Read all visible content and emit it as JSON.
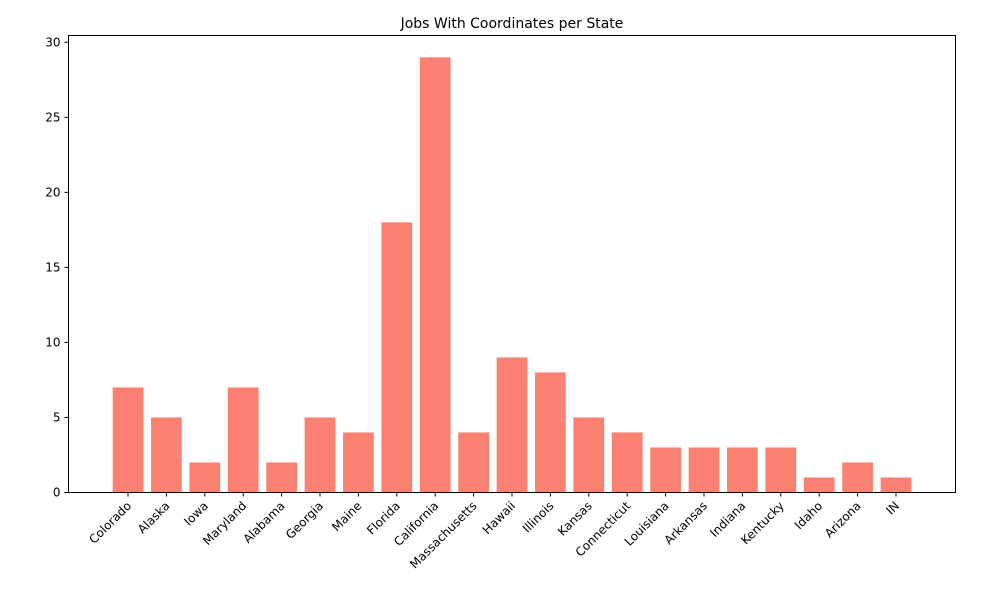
{
  "chart_data": {
    "type": "bar",
    "title": "Jobs With Coordinates per State",
    "xlabel": "",
    "ylabel": "",
    "categories": [
      "Colorado",
      "Alaska",
      "Iowa",
      "Maryland",
      "Alabama",
      "Georgia",
      "Maine",
      "Florida",
      "California",
      "Massachusetts",
      "Hawaii",
      "Illinois",
      "Kansas",
      "Connecticut",
      "Louisiana",
      "Arkansas",
      "Indiana",
      "Kentucky",
      "Idaho",
      "Arizona",
      "IN"
    ],
    "values": [
      7,
      5,
      2,
      7,
      2,
      5,
      4,
      18,
      29,
      4,
      9,
      8,
      5,
      4,
      3,
      3,
      3,
      3,
      1,
      2,
      1
    ],
    "ylim": [
      0,
      30.45
    ],
    "yticks": [
      0,
      5,
      10,
      15,
      20,
      25,
      30
    ],
    "bar_color": "#fa8072",
    "grid": false,
    "legend": "none"
  }
}
